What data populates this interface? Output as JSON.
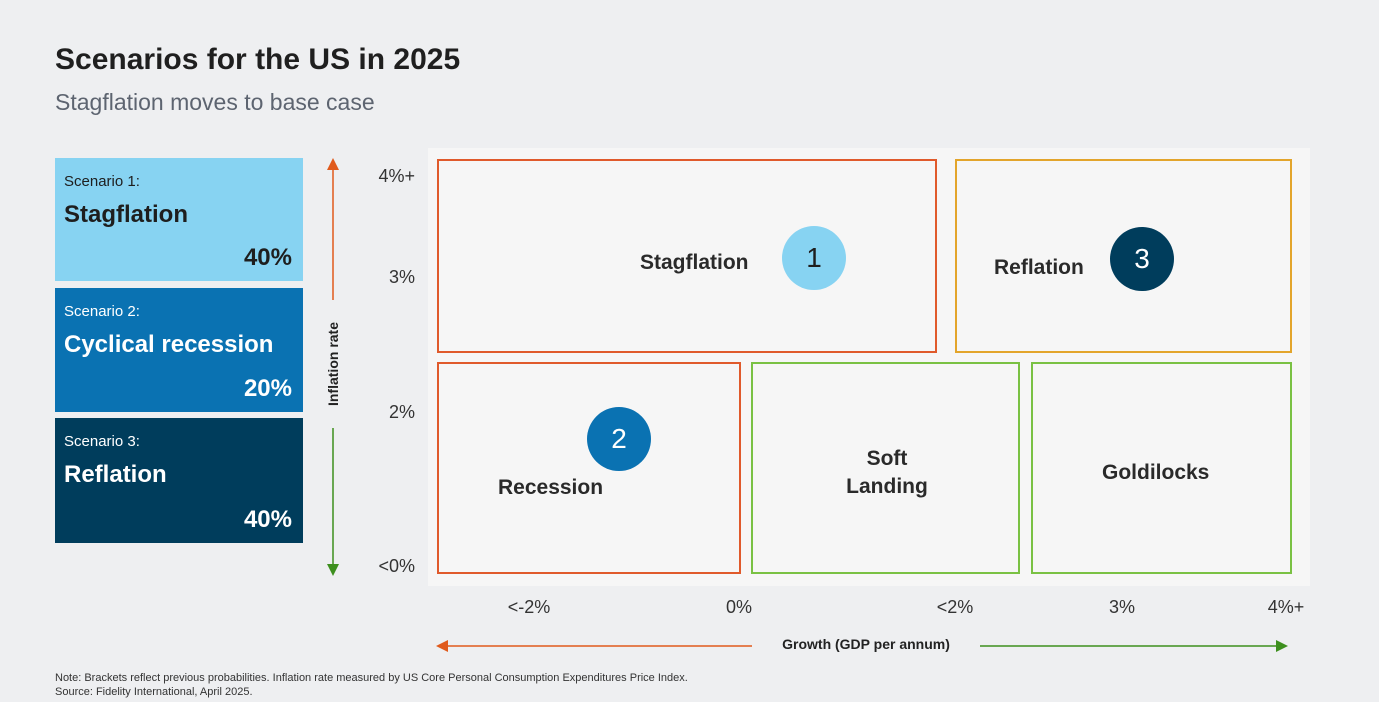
{
  "header": {
    "title": "Scenarios for the US in 2025",
    "subtitle": "Stagflation moves to base case"
  },
  "scenarios": [
    {
      "label": "Scenario 1:",
      "name": "Stagflation",
      "probability": "40%",
      "color": "#87d3f2",
      "text_color": "#1e1e1e"
    },
    {
      "label": "Scenario 2:",
      "name": "Cyclical recession",
      "probability": "20%",
      "color": "#0a72b2",
      "text_color": "#ffffff"
    },
    {
      "label": "Scenario 3:",
      "name": "Reflation",
      "probability": "40%",
      "color": "#003d5c",
      "text_color": "#ffffff"
    }
  ],
  "axes": {
    "y_label": "Inflation rate",
    "y_ticks": [
      "4%+",
      "3%",
      "2%",
      "<0%"
    ],
    "x_label": "Growth (GDP per annum)",
    "x_ticks": [
      "<-2%",
      "0%",
      "<2%",
      "3%",
      "4%+"
    ],
    "colors": {
      "up": "#e05a1c",
      "down": "#3d8f1e",
      "left": "#e05a1c",
      "right": "#3d8f1e"
    }
  },
  "quadrants": {
    "stagflation": {
      "label": "Stagflation",
      "border": "#e05a2b"
    },
    "reflation": {
      "label": "Reflation",
      "border": "#e3a52b"
    },
    "recession": {
      "label": "Recession",
      "border": "#e05a2b"
    },
    "soft_landing": {
      "label_line1": "Soft",
      "label_line2": "Landing",
      "border": "#7ac143"
    },
    "goldilocks": {
      "label": "Goldilocks",
      "border": "#7ac143"
    }
  },
  "markers": [
    {
      "number": "1",
      "color": "#87d3f2",
      "text_color": "#1e1e1e"
    },
    {
      "number": "2",
      "color": "#0a72b2",
      "text_color": "#ffffff"
    },
    {
      "number": "3",
      "color": "#003d5c",
      "text_color": "#ffffff"
    }
  ],
  "footer": {
    "note": "Note: Brackets reflect previous probabilities. Inflation rate measured by US Core Personal Consumption Expenditures Price Index.",
    "source": "Source: Fidelity International, April 2025."
  }
}
